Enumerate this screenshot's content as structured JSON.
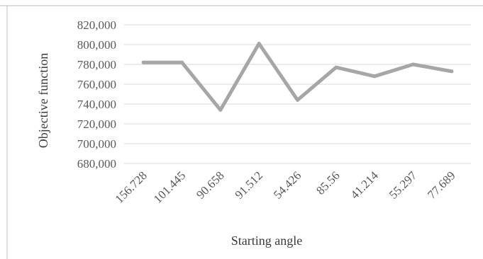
{
  "chart_data": {
    "type": "line",
    "title": "",
    "xlabel": "Starting angle",
    "ylabel": "Objective function",
    "categories": [
      "156.728",
      "101.445",
      "90.658",
      "91.512",
      "54.426",
      "85.56",
      "41.214",
      "55.297",
      "77.689"
    ],
    "series": [
      {
        "values": [
          782000,
          782000,
          734000,
          801000,
          744000,
          777000,
          768000,
          780000,
          773000
        ]
      }
    ],
    "ylim": [
      680000,
      820000
    ],
    "yticks": [
      "680,000",
      "700,000",
      "720,000",
      "740,000",
      "760,000",
      "780,000",
      "800,000",
      "820,000"
    ],
    "ytick_values": [
      680000,
      700000,
      720000,
      740000,
      760000,
      780000,
      800000,
      820000
    ],
    "grid": true,
    "legend": "none",
    "colors": {
      "line": "#a6a6a6",
      "grid": "#d9d9d9",
      "frame": "#bfbfbf"
    }
  }
}
